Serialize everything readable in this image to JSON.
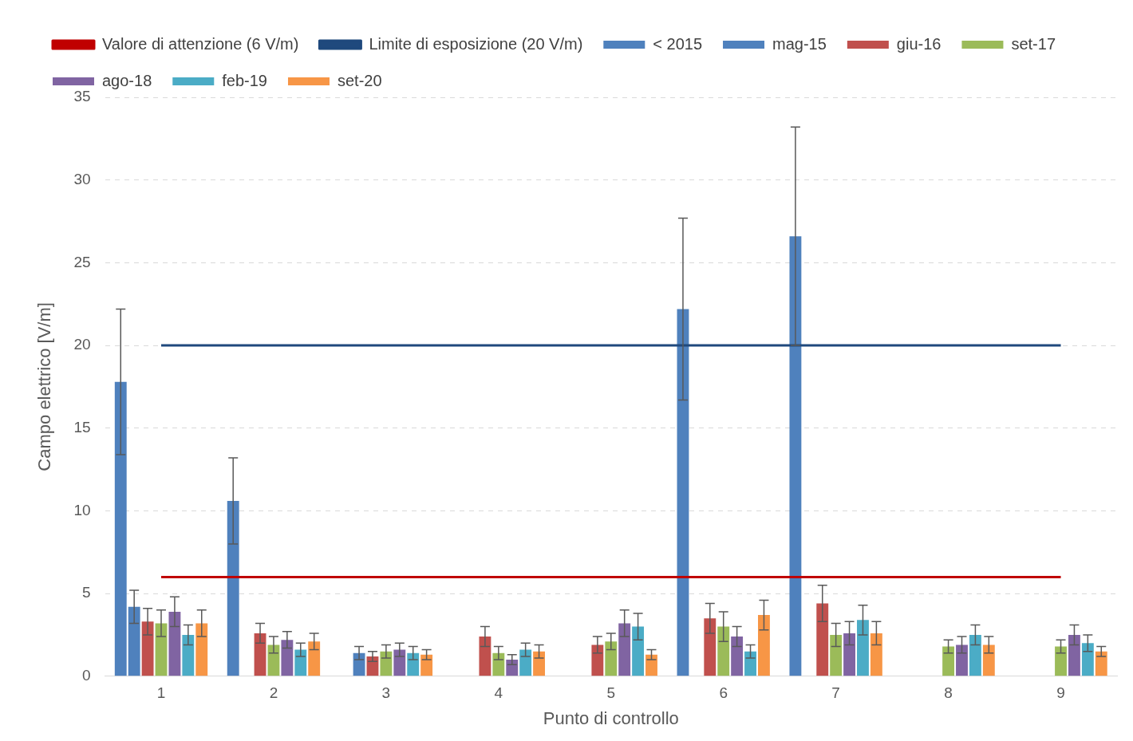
{
  "chart_data": {
    "type": "bar",
    "xlabel": "Punto di controllo",
    "ylabel": "Campo elettrico [V/m]",
    "categories": [
      "1",
      "2",
      "3",
      "4",
      "5",
      "6",
      "7",
      "8",
      "9"
    ],
    "ylim": [
      0,
      35
    ],
    "yticks": [
      0,
      5,
      10,
      15,
      20,
      25,
      30,
      35
    ],
    "grid": "y",
    "legend": "top",
    "series": [
      {
        "name": "< 2015",
        "color": "#4f81bd",
        "values": [
          17.8,
          10.6,
          null,
          null,
          null,
          22.2,
          26.6,
          null,
          null
        ],
        "errors": [
          4.4,
          2.6,
          null,
          null,
          null,
          5.5,
          6.6,
          null,
          null
        ]
      },
      {
        "name": "mag-15",
        "color": "#4f81bd",
        "values": [
          4.2,
          null,
          1.4,
          null,
          null,
          null,
          null,
          null,
          null
        ],
        "errors": [
          1.0,
          null,
          0.4,
          null,
          null,
          null,
          null,
          null,
          null
        ]
      },
      {
        "name": "giu-16",
        "color": "#c0504d",
        "values": [
          3.3,
          2.6,
          1.2,
          2.4,
          1.9,
          3.5,
          4.4,
          null,
          null
        ],
        "errors": [
          0.8,
          0.6,
          0.3,
          0.6,
          0.5,
          0.9,
          1.1,
          null,
          null
        ]
      },
      {
        "name": "set-17",
        "color": "#9bbb59",
        "values": [
          3.2,
          1.9,
          1.5,
          1.4,
          2.1,
          3.0,
          2.5,
          1.8,
          1.8
        ],
        "errors": [
          0.8,
          0.5,
          0.4,
          0.4,
          0.5,
          0.9,
          0.7,
          0.4,
          0.4
        ]
      },
      {
        "name": "ago-18",
        "color": "#8064a2",
        "values": [
          3.9,
          2.2,
          1.6,
          1.0,
          3.2,
          2.4,
          2.6,
          1.9,
          2.5
        ],
        "errors": [
          0.9,
          0.5,
          0.4,
          0.3,
          0.8,
          0.6,
          0.7,
          0.5,
          0.6
        ]
      },
      {
        "name": "feb-19",
        "color": "#4bacc6",
        "values": [
          2.5,
          1.6,
          1.4,
          1.6,
          3.0,
          1.5,
          3.4,
          2.5,
          2.0
        ],
        "errors": [
          0.6,
          0.4,
          0.4,
          0.4,
          0.8,
          0.4,
          0.9,
          0.6,
          0.5
        ]
      },
      {
        "name": "set-20",
        "color": "#f79646",
        "values": [
          3.2,
          2.1,
          1.3,
          1.5,
          1.3,
          3.7,
          2.6,
          1.9,
          1.5
        ],
        "errors": [
          0.8,
          0.5,
          0.3,
          0.4,
          0.3,
          0.9,
          0.7,
          0.5,
          0.3
        ]
      },
      {
        "name": "Valore di attenzione (6 V/m)",
        "type": "line",
        "color": "#c00000",
        "marker": "none",
        "values": [
          6,
          6,
          6,
          6,
          6,
          6,
          6,
          6,
          6
        ]
      },
      {
        "name": "Limite di esposizione (20 V/m)",
        "type": "line",
        "color": "#1f497d",
        "marker": "none",
        "values": [
          20,
          20,
          20,
          20,
          20,
          20,
          20,
          20,
          20
        ]
      }
    ]
  }
}
